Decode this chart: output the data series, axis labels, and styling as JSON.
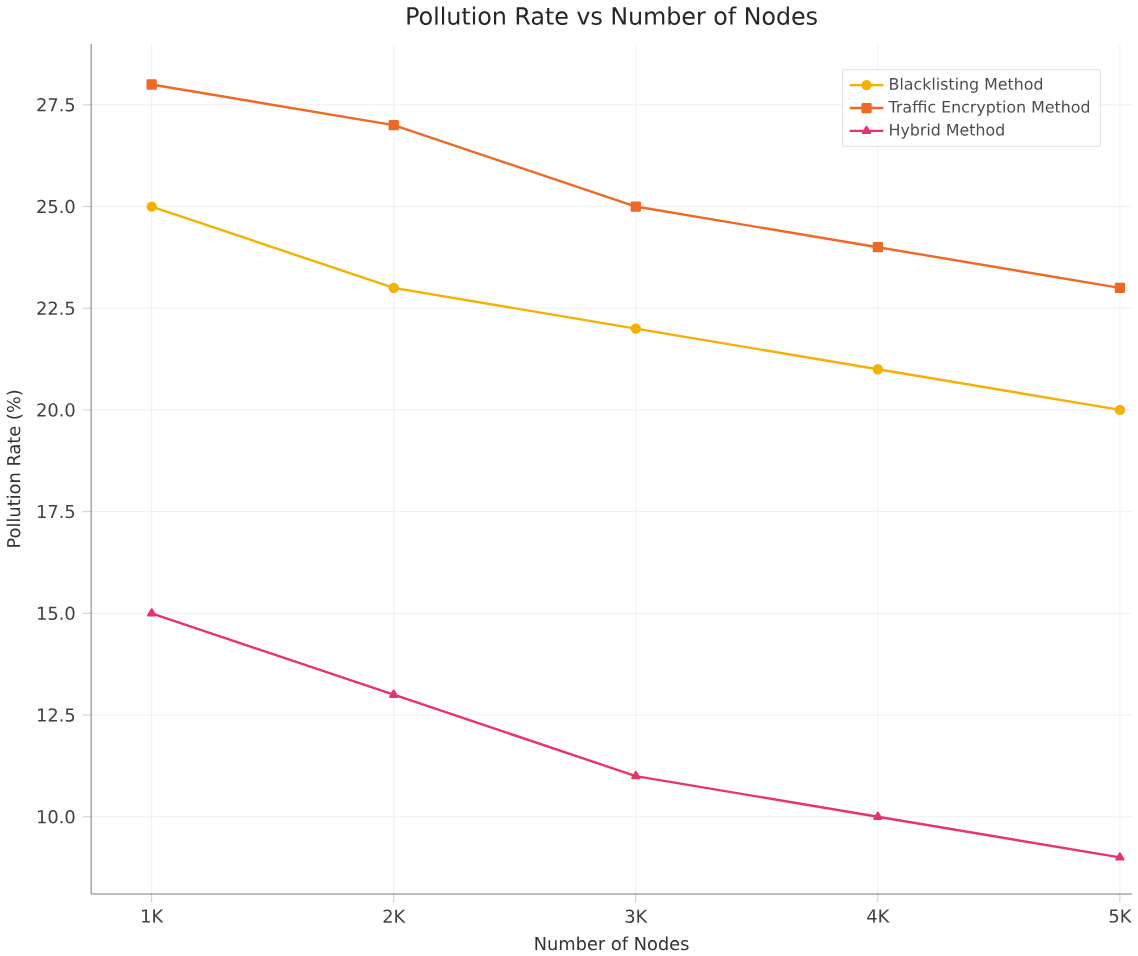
{
  "chart_data": {
    "type": "line",
    "title": "Pollution Rate vs Number of Nodes",
    "xlabel": "Number of Nodes",
    "ylabel": "Pollution Rate (%)",
    "categories": [
      "1K",
      "2K",
      "3K",
      "4K",
      "5K"
    ],
    "series": [
      {
        "name": "Blacklisting Method",
        "color": "#f5b000",
        "marker": "circle",
        "values": [
          25,
          23,
          22,
          21,
          20
        ]
      },
      {
        "name": "Traffic Encryption Method",
        "color": "#ee6a24",
        "marker": "square",
        "values": [
          28,
          27,
          25,
          24,
          23
        ]
      },
      {
        "name": "Hybrid Method",
        "color": "#e6356a",
        "marker": "triangle",
        "values": [
          15,
          13,
          11,
          10,
          9
        ]
      }
    ],
    "ylim": [
      8.1,
      29.0
    ],
    "yticks": [
      {
        "value": 10,
        "label": "10.0"
      },
      12.5,
      {
        "value": 15,
        "label": "15.0"
      },
      17.5,
      {
        "value": 20,
        "label": "20.0"
      },
      22.5,
      {
        "value": 25,
        "label": "25.0"
      },
      27.5
    ],
    "grid": true,
    "legend": "top right",
    "line_style": "solid"
  }
}
